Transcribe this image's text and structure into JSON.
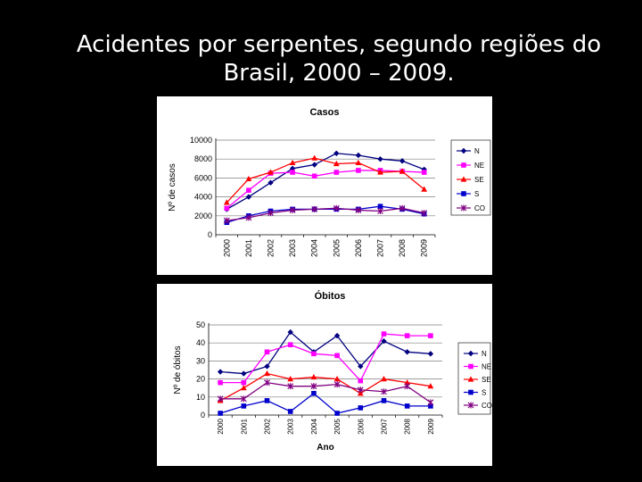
{
  "slide": {
    "title_line1": "Acidentes por serpentes, segundo regiões do",
    "title_line2": "Brasil, 2000 – 2009."
  },
  "chart_data": [
    {
      "type": "line",
      "title": "Casos",
      "xlabel": "",
      "ylabel": "Nº de casos",
      "ylim": [
        0,
        10000
      ],
      "yticks": [
        0,
        2000,
        4000,
        6000,
        8000,
        10000
      ],
      "ytick_labels": [
        "0",
        "2000",
        "4000",
        "6000",
        "8000",
        "10000"
      ],
      "categories": [
        "2000",
        "2001",
        "2002",
        "2003",
        "2004",
        "2005",
        "2006",
        "2007",
        "2008",
        "2009"
      ],
      "grid": true,
      "legend": "right",
      "series": [
        {
          "name": "N",
          "color": "#000080",
          "marker": "diamond",
          "values": [
            2700,
            4000,
            5500,
            7000,
            7400,
            8600,
            8400,
            8000,
            7800,
            6900
          ]
        },
        {
          "name": "NE",
          "color": "#ff00ff",
          "marker": "square",
          "values": [
            2800,
            4700,
            6500,
            6600,
            6200,
            6600,
            6800,
            6800,
            6700,
            6600
          ]
        },
        {
          "name": "SE",
          "color": "#ff0000",
          "marker": "triangle",
          "values": [
            3400,
            5900,
            6600,
            7600,
            8100,
            7500,
            7600,
            6600,
            6700,
            4800
          ]
        },
        {
          "name": "S",
          "color": "#0000cc",
          "marker": "square",
          "values": [
            1300,
            2000,
            2500,
            2700,
            2700,
            2700,
            2700,
            3000,
            2700,
            2200
          ]
        },
        {
          "name": "CO",
          "color": "#800080",
          "marker": "star",
          "values": [
            1500,
            1800,
            2300,
            2600,
            2700,
            2800,
            2600,
            2500,
            2800,
            2300
          ]
        }
      ]
    },
    {
      "type": "line",
      "title": "Óbitos",
      "xlabel": "Ano",
      "ylabel": "Nº de óbitos",
      "ylim": [
        0,
        50
      ],
      "yticks": [
        0,
        10,
        20,
        30,
        40,
        50
      ],
      "ytick_labels": [
        "0",
        "10",
        "20",
        "30",
        "40",
        "50"
      ],
      "categories": [
        "2000",
        "2001",
        "2002",
        "2003",
        "2004",
        "2005",
        "2006",
        "2007",
        "2008",
        "2009"
      ],
      "grid": true,
      "legend": "right",
      "series": [
        {
          "name": "N",
          "color": "#000080",
          "marker": "diamond",
          "values": [
            24,
            23,
            27,
            46,
            35,
            44,
            27,
            41,
            35,
            34
          ]
        },
        {
          "name": "NE",
          "color": "#ff00ff",
          "marker": "square",
          "values": [
            18,
            18,
            35,
            39,
            34,
            33,
            19,
            45,
            44,
            44
          ]
        },
        {
          "name": "SE",
          "color": "#ff0000",
          "marker": "triangle",
          "values": [
            8,
            15,
            23,
            20,
            21,
            20,
            12,
            20,
            18,
            16
          ]
        },
        {
          "name": "S",
          "color": "#0000cc",
          "marker": "square",
          "values": [
            1,
            5,
            8,
            2,
            12,
            1,
            4,
            8,
            5,
            5
          ]
        },
        {
          "name": "CO",
          "color": "#800080",
          "marker": "star",
          "values": [
            9,
            9,
            18,
            16,
            16,
            17,
            14,
            13,
            16,
            7
          ]
        }
      ]
    }
  ]
}
